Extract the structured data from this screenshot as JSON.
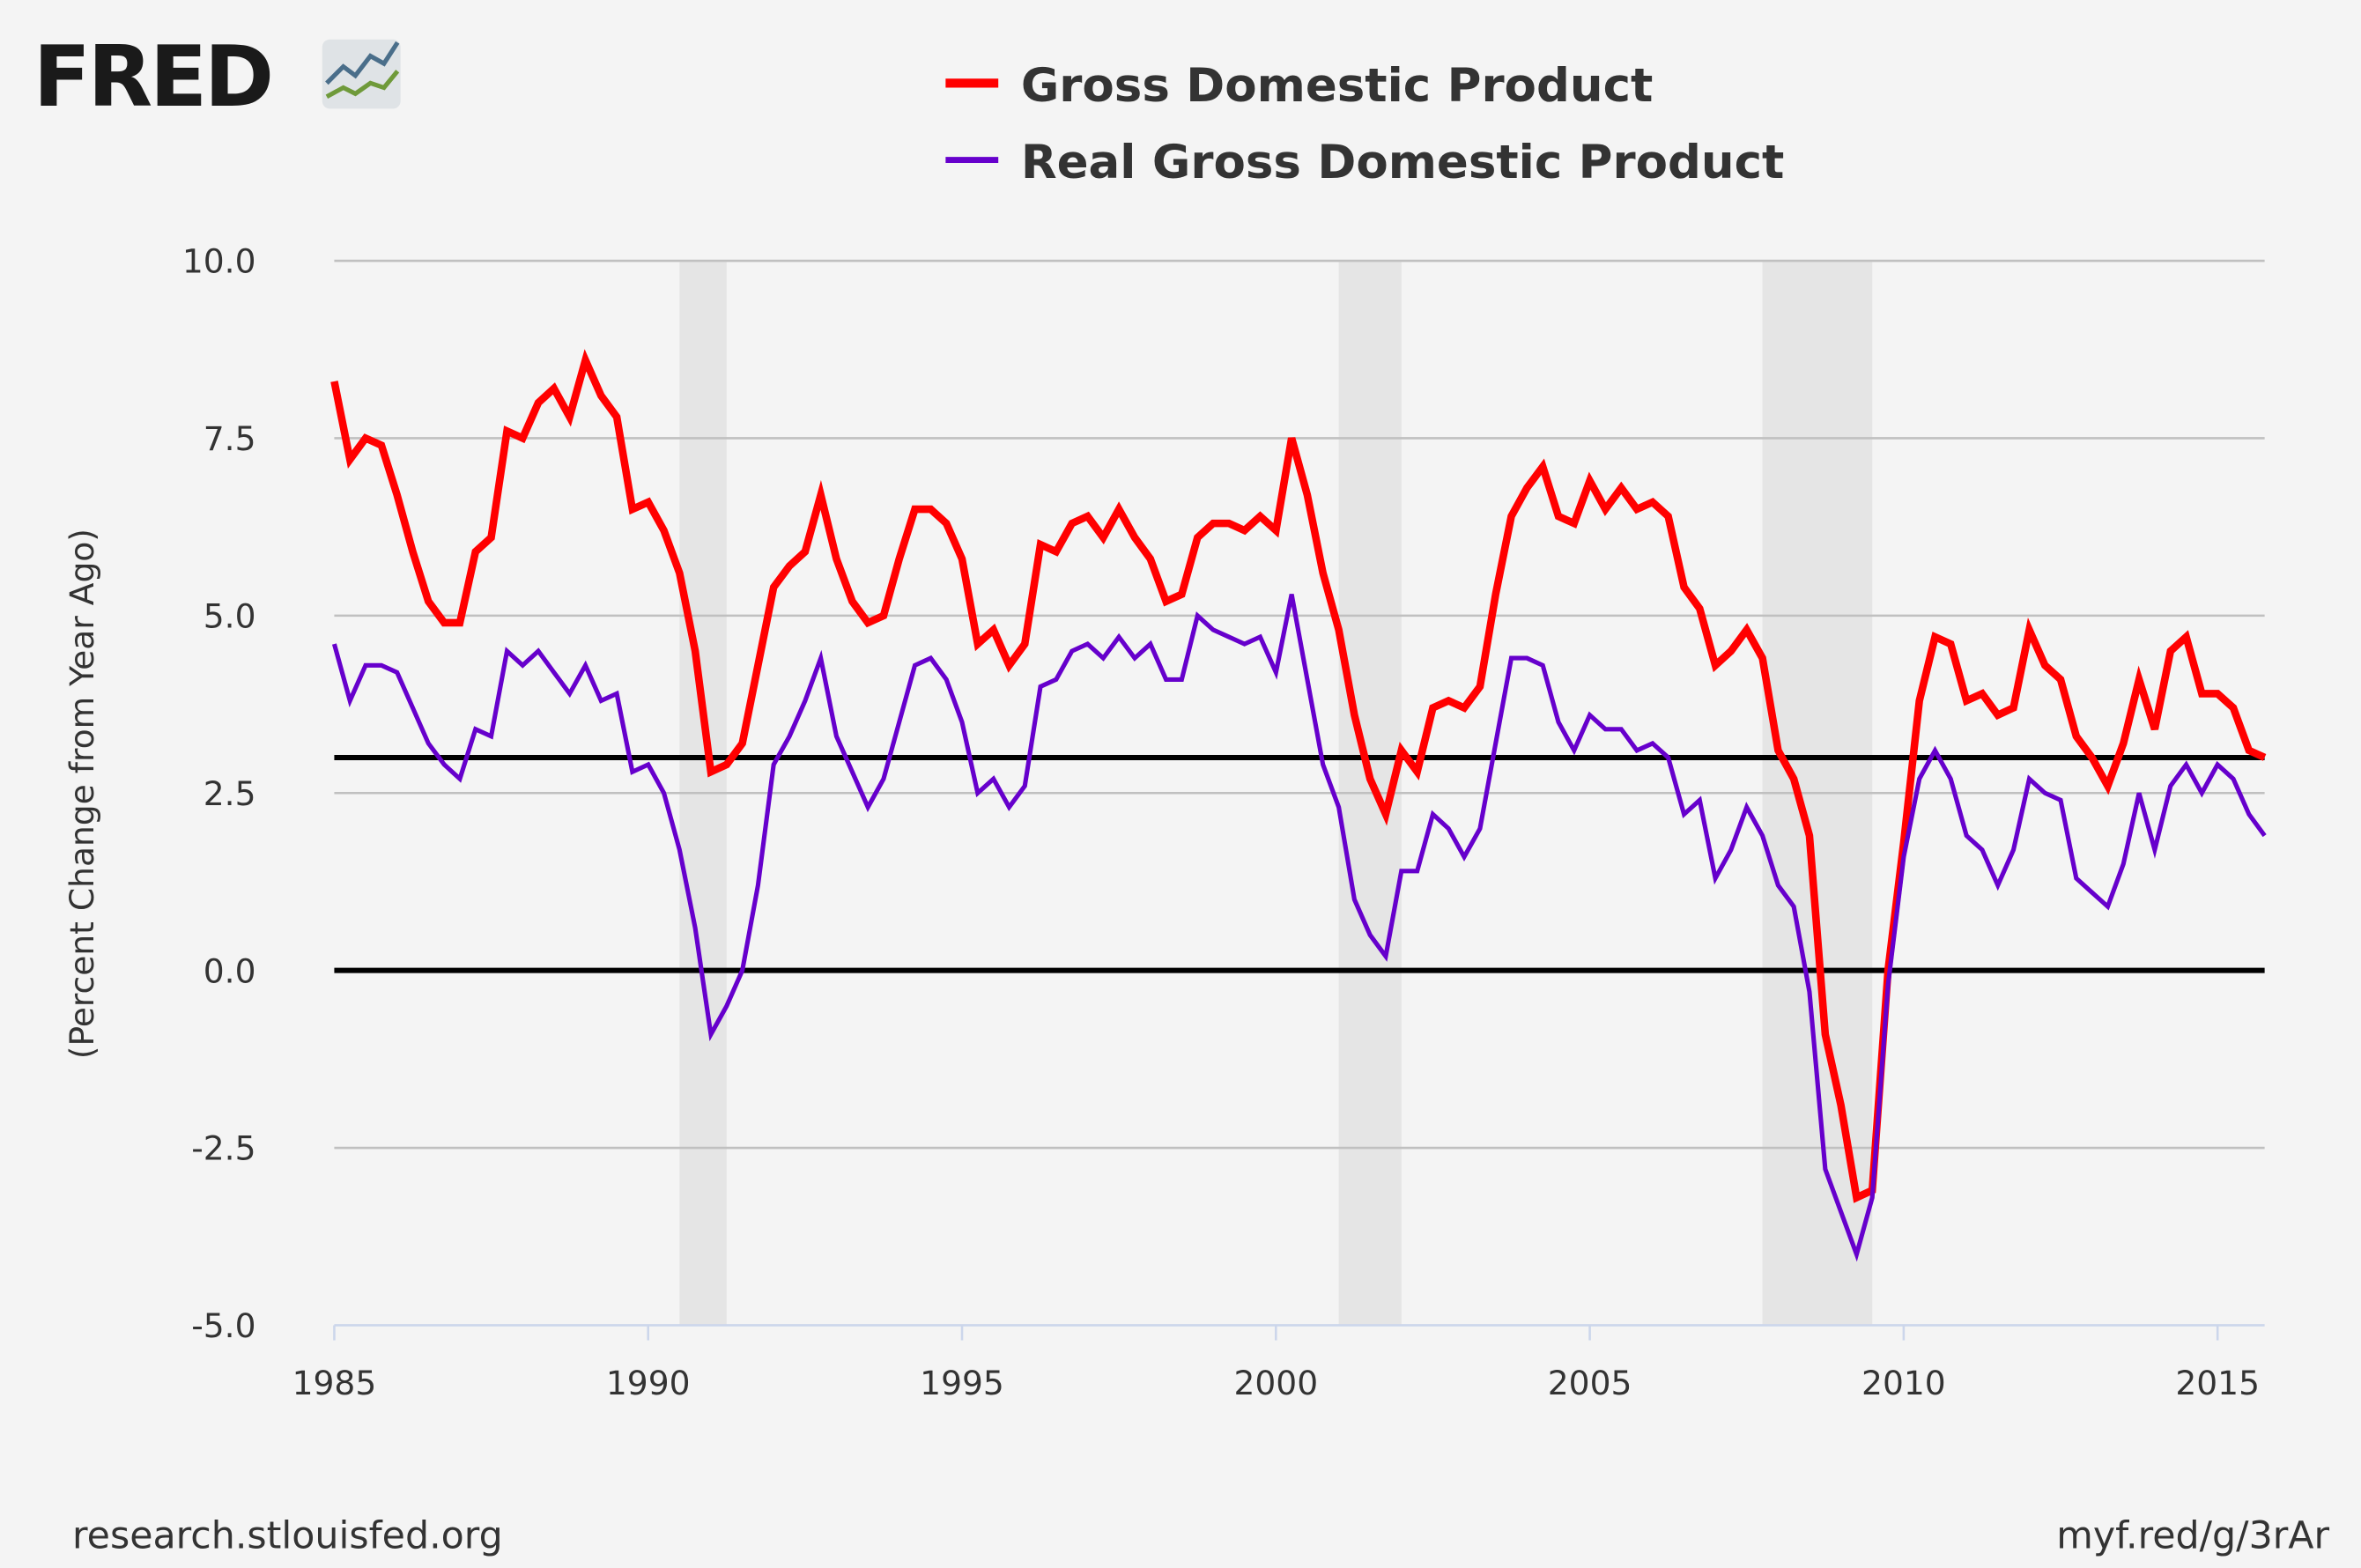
{
  "logo": {
    "text": "FRED"
  },
  "chart_data": {
    "type": "line",
    "title": "",
    "xlabel": "",
    "ylabel": "(Percent Change from Year Ago)",
    "xlim": [
      1985,
      2015.75
    ],
    "ylim": [
      -5,
      10
    ],
    "x_ticks": [
      "1985",
      "1990",
      "1995",
      "2000",
      "2005",
      "2010",
      "2015"
    ],
    "y_ticks": [
      "10.0",
      "7.5",
      "5.0",
      "2.5",
      "0.0",
      "-2.5",
      "-5.0"
    ],
    "grid": true,
    "legend_position": "top",
    "frequency": "quarterly",
    "start": "1985-Q1",
    "reference_lines": [
      0.0,
      3.0
    ],
    "recessions": [
      [
        "1990-Q3",
        "1991-Q1"
      ],
      [
        "2001-Q1",
        "2001-Q4"
      ],
      [
        "2007-Q4",
        "2009-Q2"
      ]
    ],
    "series": [
      {
        "name": "Gross Domestic Product",
        "color": "#ff0000",
        "values": [
          8.3,
          7.2,
          7.5,
          7.4,
          6.7,
          5.9,
          5.2,
          4.9,
          4.9,
          5.9,
          6.1,
          7.6,
          7.5,
          8.0,
          8.2,
          7.8,
          8.6,
          8.1,
          7.8,
          6.5,
          6.6,
          6.2,
          5.6,
          4.5,
          2.8,
          2.9,
          3.2,
          4.3,
          5.4,
          5.7,
          5.9,
          6.7,
          5.8,
          5.2,
          4.9,
          5.0,
          5.8,
          6.5,
          6.5,
          6.3,
          5.8,
          4.6,
          4.8,
          4.3,
          4.6,
          6.0,
          5.9,
          6.3,
          6.4,
          6.1,
          6.5,
          6.1,
          5.8,
          5.2,
          5.3,
          6.1,
          6.3,
          6.3,
          6.2,
          6.4,
          6.2,
          7.5,
          6.7,
          5.6,
          4.8,
          3.6,
          2.7,
          2.2,
          3.1,
          2.8,
          3.7,
          3.8,
          3.7,
          4.0,
          5.3,
          6.4,
          6.8,
          7.1,
          6.4,
          6.3,
          6.9,
          6.5,
          6.8,
          6.5,
          6.6,
          6.4,
          5.4,
          5.1,
          4.3,
          4.5,
          4.8,
          4.4,
          3.1,
          2.7,
          1.9,
          -0.9,
          -1.9,
          -3.2,
          -3.1,
          0.0,
          1.8,
          3.8,
          4.7,
          4.6,
          3.8,
          3.9,
          3.6,
          3.7,
          4.8,
          4.3,
          4.1,
          3.3,
          3.0,
          2.6,
          3.2,
          4.1,
          3.4,
          4.5,
          4.7,
          3.9,
          3.9,
          3.7,
          3.1,
          3.0
        ]
      },
      {
        "name": "Real Gross Domestic Product",
        "color": "#6600cc",
        "values": [
          4.6,
          3.8,
          4.3,
          4.3,
          4.2,
          3.7,
          3.2,
          2.9,
          2.7,
          3.4,
          3.3,
          4.5,
          4.3,
          4.5,
          4.2,
          3.9,
          4.3,
          3.8,
          3.9,
          2.8,
          2.9,
          2.5,
          1.7,
          0.6,
          -0.9,
          -0.5,
          0.0,
          1.2,
          2.9,
          3.3,
          3.8,
          4.4,
          3.3,
          2.8,
          2.3,
          2.7,
          3.5,
          4.3,
          4.4,
          4.1,
          3.5,
          2.5,
          2.7,
          2.3,
          2.6,
          4.0,
          4.1,
          4.5,
          4.6,
          4.4,
          4.7,
          4.4,
          4.6,
          4.1,
          4.1,
          5.0,
          4.8,
          4.7,
          4.6,
          4.7,
          4.2,
          5.3,
          4.1,
          2.9,
          2.3,
          1.0,
          0.5,
          0.2,
          1.4,
          1.4,
          2.2,
          2.0,
          1.6,
          2.0,
          3.2,
          4.4,
          4.4,
          4.3,
          3.5,
          3.1,
          3.6,
          3.4,
          3.4,
          3.1,
          3.2,
          3.0,
          2.2,
          2.4,
          1.3,
          1.7,
          2.3,
          1.9,
          1.2,
          0.9,
          -0.3,
          -2.8,
          -3.4,
          -4.0,
          -3.2,
          -0.2,
          1.6,
          2.7,
          3.1,
          2.7,
          1.9,
          1.7,
          1.2,
          1.7,
          2.7,
          2.5,
          2.4,
          1.3,
          1.1,
          0.9,
          1.5,
          2.5,
          1.7,
          2.6,
          2.9,
          2.5,
          2.9,
          2.7,
          2.2,
          1.9
        ]
      }
    ]
  },
  "footer": {
    "left": "research.stlouisfed.org",
    "right": "myf.red/g/3rAr"
  }
}
